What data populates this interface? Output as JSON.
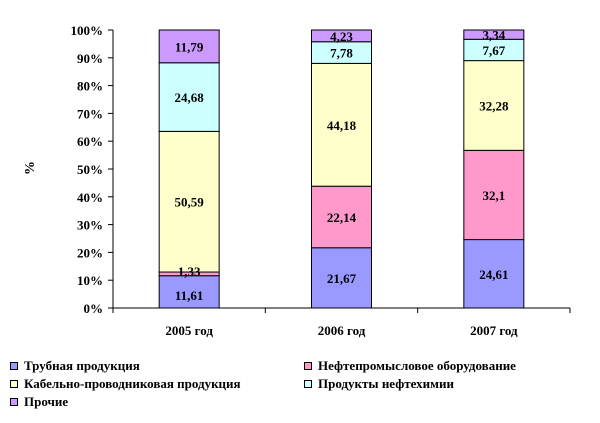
{
  "chart_data": {
    "type": "bar",
    "stacked": true,
    "percent_axis": true,
    "ylabel": "%",
    "xlabel": "",
    "ylim": [
      0,
      100
    ],
    "y_ticks": [
      "0%",
      "10%",
      "20%",
      "30%",
      "40%",
      "50%",
      "60%",
      "70%",
      "80%",
      "90%",
      "100%"
    ],
    "categories": [
      "2005 год",
      "2006 год",
      "2007 год"
    ],
    "series": [
      {
        "name": "Трубная продукция",
        "color": "#9999ff",
        "values": [
          11.61,
          21.67,
          24.61
        ],
        "labels": [
          "11,61",
          "21,67",
          "24,61"
        ]
      },
      {
        "name": "Нефтепромысловое оборудование",
        "color": "#ff99cc",
        "values": [
          1.33,
          22.14,
          32.1
        ],
        "labels": [
          "1,33",
          "22,14",
          "32,1"
        ]
      },
      {
        "name": "Кабельно-проводниковая продукция",
        "color": "#ffffcc",
        "values": [
          50.59,
          44.18,
          32.28
        ],
        "labels": [
          "50,59",
          "44,18",
          "32,28"
        ]
      },
      {
        "name": "Продукты нефтехимии",
        "color": "#ccffff",
        "values": [
          24.68,
          7.78,
          7.67
        ],
        "labels": [
          "24,68",
          "7,78",
          "7,67"
        ]
      },
      {
        "name": "Прочие",
        "color": "#cc99ff",
        "values": [
          11.79,
          4.23,
          3.34
        ],
        "labels": [
          "11,79",
          "4,23",
          "3,34"
        ]
      }
    ],
    "legend_position": "bottom",
    "grid": false
  }
}
